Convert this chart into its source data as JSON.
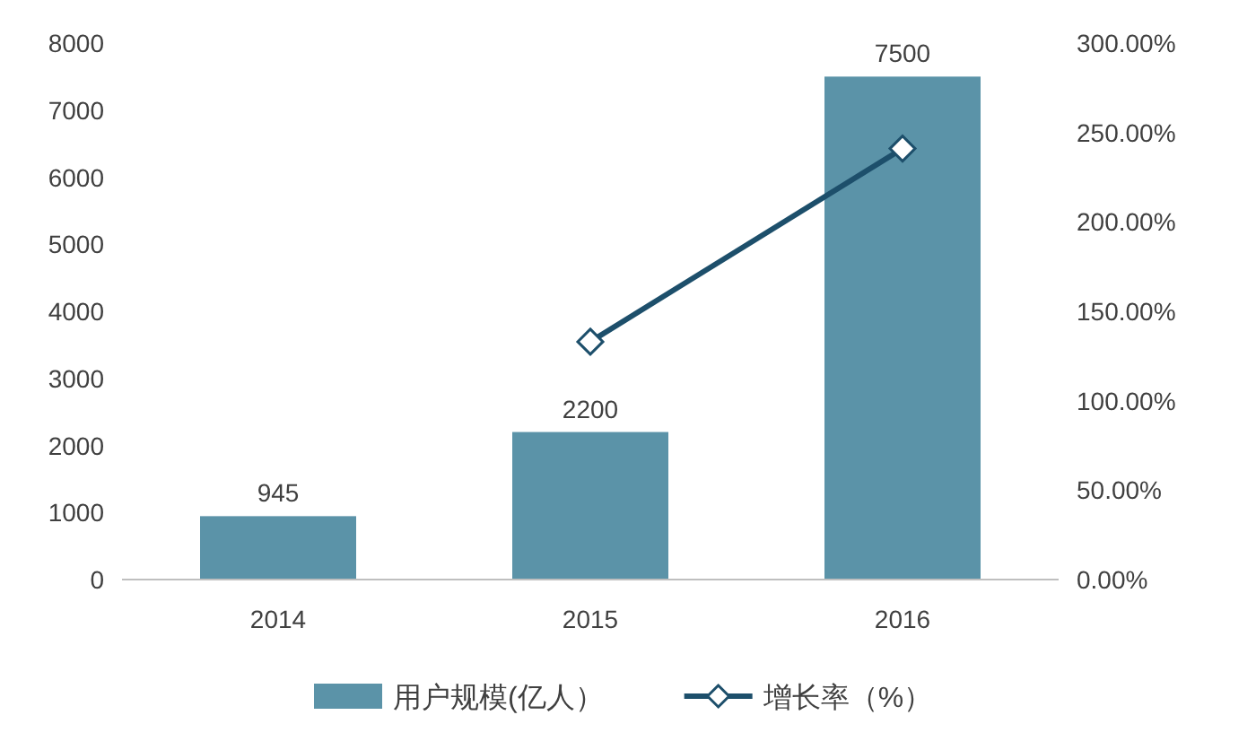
{
  "chart_data": {
    "type": "bar",
    "categories": [
      "2014",
      "2015",
      "2016"
    ],
    "series": [
      {
        "name": "用户规模(亿人）",
        "color": "#5b93a8",
        "values": [
          945,
          2200,
          7500
        ]
      },
      {
        "name": "增长率（%）",
        "type": "line",
        "axis": "y2",
        "color": "#1d4f6b",
        "values": [
          null,
          133,
          241
        ],
        "marker": "diamond"
      }
    ],
    "ylim": [
      0,
      8000
    ],
    "yticks": [
      0,
      1000,
      2000,
      3000,
      4000,
      5000,
      6000,
      7000,
      8000
    ],
    "y2lim": [
      0,
      300
    ],
    "y2ticks": [
      {
        "value": 0,
        "label": "0.00%"
      },
      {
        "value": 50,
        "label": "50.00%"
      },
      {
        "value": 100,
        "label": "100.00%"
      },
      {
        "value": 150,
        "label": "150.00%"
      },
      {
        "value": 200,
        "label": "200.00%"
      },
      {
        "value": 250,
        "label": "250.00%"
      },
      {
        "value": 300,
        "label": "300.00%"
      }
    ],
    "value_labels": [
      "945",
      "2200",
      "7500"
    ],
    "grid": false,
    "legend": "bottom"
  }
}
